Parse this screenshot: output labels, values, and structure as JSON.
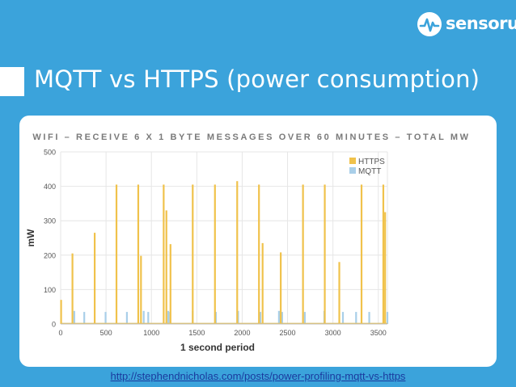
{
  "brand": {
    "name": "sensorup",
    "icon": "sensorup-logo-icon"
  },
  "slide": {
    "title": "MQTT vs HTTPS (power consumption)"
  },
  "footer": {
    "link": "http://stephendnicholas.com/posts/power-profiling-mqtt-vs-https"
  },
  "colors": {
    "background": "#3ba3db",
    "https": "#f0c24b",
    "mqtt": "#a9cfe9"
  },
  "chart_data": {
    "type": "bar",
    "title": "WIFI – RECEIVE 6 X 1 BYTE MESSAGES OVER 60 MINUTES – TOTAL MW",
    "xlabel": "1 second period",
    "ylabel": "mW",
    "xlim": [
      0,
      3600
    ],
    "ylim": [
      0,
      500
    ],
    "xticks": [
      0,
      500,
      1000,
      1500,
      2000,
      2500,
      3000,
      3500
    ],
    "yticks": [
      0,
      100,
      200,
      300,
      400,
      500
    ],
    "grid": true,
    "legend": "top-right",
    "series": [
      {
        "name": "HTTPS",
        "color": "#f0c24b",
        "baseline": 3,
        "spikes": [
          {
            "x": 5,
            "y": 70
          },
          {
            "x": 130,
            "y": 205
          },
          {
            "x": 375,
            "y": 265
          },
          {
            "x": 615,
            "y": 405
          },
          {
            "x": 855,
            "y": 405
          },
          {
            "x": 885,
            "y": 198
          },
          {
            "x": 1135,
            "y": 405
          },
          {
            "x": 1165,
            "y": 330
          },
          {
            "x": 1210,
            "y": 232
          },
          {
            "x": 1455,
            "y": 405
          },
          {
            "x": 1700,
            "y": 405
          },
          {
            "x": 1945,
            "y": 415
          },
          {
            "x": 2185,
            "y": 405
          },
          {
            "x": 2225,
            "y": 235
          },
          {
            "x": 2425,
            "y": 208
          },
          {
            "x": 2670,
            "y": 405
          },
          {
            "x": 2910,
            "y": 405
          },
          {
            "x": 3070,
            "y": 180
          },
          {
            "x": 3315,
            "y": 405
          },
          {
            "x": 3555,
            "y": 405
          },
          {
            "x": 3575,
            "y": 325
          }
        ]
      },
      {
        "name": "MQTT",
        "color": "#a9cfe9",
        "baseline": 3,
        "spikes": [
          {
            "x": 150,
            "y": 38
          },
          {
            "x": 260,
            "y": 35
          },
          {
            "x": 495,
            "y": 35
          },
          {
            "x": 730,
            "y": 35
          },
          {
            "x": 915,
            "y": 38
          },
          {
            "x": 965,
            "y": 35
          },
          {
            "x": 1185,
            "y": 38
          },
          {
            "x": 1205,
            "y": 35
          },
          {
            "x": 1455,
            "y": 38
          },
          {
            "x": 1710,
            "y": 35
          },
          {
            "x": 1955,
            "y": 38
          },
          {
            "x": 2200,
            "y": 35
          },
          {
            "x": 2405,
            "y": 38
          },
          {
            "x": 2440,
            "y": 35
          },
          {
            "x": 2690,
            "y": 35
          },
          {
            "x": 2905,
            "y": 38
          },
          {
            "x": 3110,
            "y": 35
          },
          {
            "x": 3255,
            "y": 35
          },
          {
            "x": 3400,
            "y": 35
          },
          {
            "x": 3600,
            "y": 35
          }
        ]
      }
    ]
  }
}
